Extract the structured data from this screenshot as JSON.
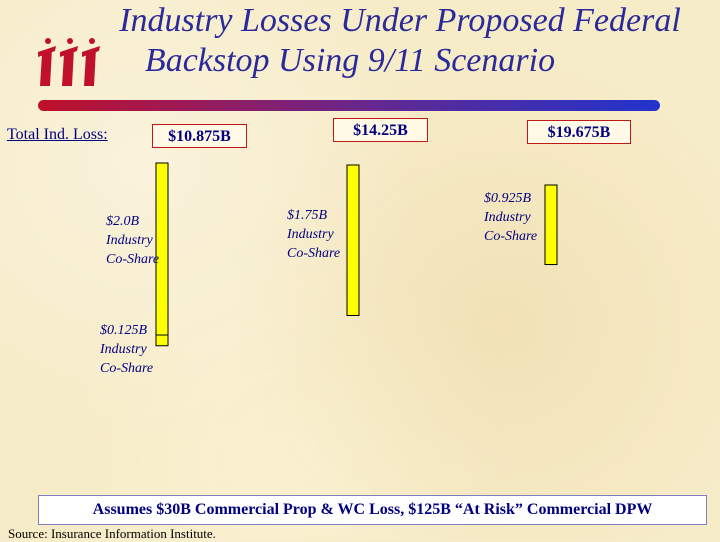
{
  "title": {
    "line1": "Industry Losses Under Proposed Federal",
    "line2": "Backstop Using 9/11 Scenario"
  },
  "logo": {
    "icon": "iii-logo",
    "color": "#c0102a"
  },
  "total_label": "Total Ind. Loss:",
  "footnote": "Assumes $30B Commercial Prop & WC Loss, $125B “At Risk” Commercial DPW",
  "source": "Source: Insurance Information Institute.",
  "colors": {
    "bar": "#ffff00",
    "text": "#000080",
    "box_border": "#c01818"
  },
  "chart_data": {
    "type": "bar",
    "title": "Industry Losses Under Proposed Federal Backstop Using 9/11 Scenario",
    "scenarios": [
      {
        "total_loss": "$10.875B",
        "segments": [
          {
            "value": 2.0,
            "label": "$2.0B",
            "sub1": "Industry",
            "sub2": "Co-Share"
          },
          {
            "value": 0.125,
            "label": "$0.125B",
            "sub1": "Industry",
            "sub2": "Co-Share"
          }
        ]
      },
      {
        "total_loss": "$14.25B",
        "segments": [
          {
            "value": 1.75,
            "label": "$1.75B",
            "sub1": "Industry",
            "sub2": "Co-Share"
          }
        ]
      },
      {
        "total_loss": "$19.675B",
        "segments": [
          {
            "value": 0.925,
            "label": "$0.925B",
            "sub1": "Industry",
            "sub2": "Co-Share"
          }
        ]
      }
    ]
  }
}
